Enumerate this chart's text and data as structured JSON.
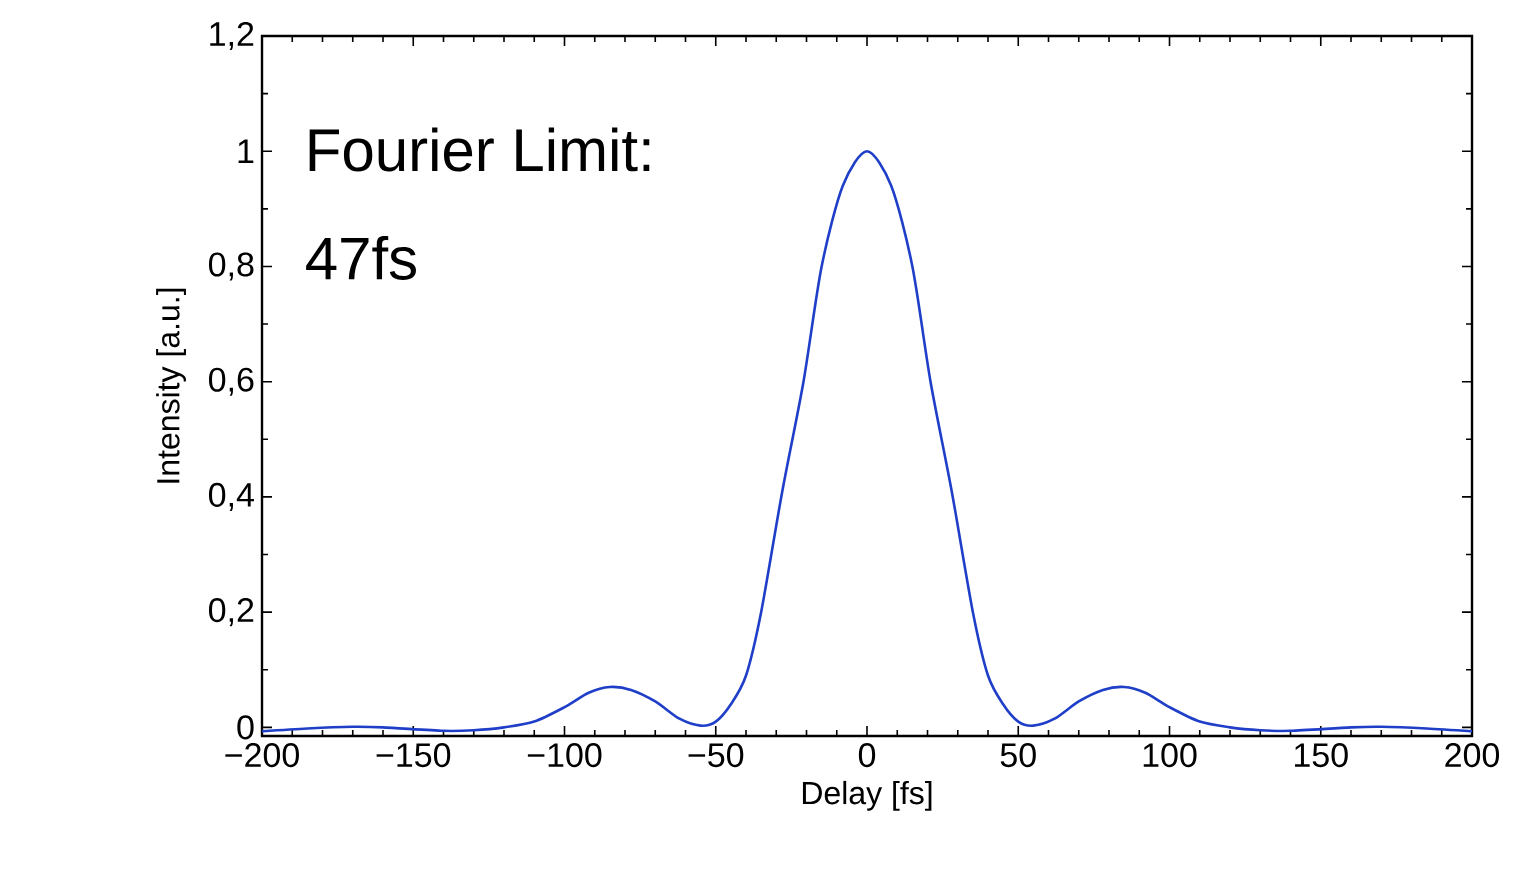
{
  "chart_data": {
    "type": "line",
    "xlabel": "Delay [fs]",
    "ylabel": "Intensity [a.u.]",
    "annotations": [
      "Fourier Limit:",
      "47fs"
    ],
    "xlim": [
      -200,
      200
    ],
    "ylim": [
      -0.015,
      1.2
    ],
    "xticks": [
      {
        "value": -200,
        "label": "−200"
      },
      {
        "value": -150,
        "label": "−150"
      },
      {
        "value": -100,
        "label": "−100"
      },
      {
        "value": -50,
        "label": "−50"
      },
      0,
      50,
      100,
      150,
      200
    ],
    "yticks": [
      0,
      {
        "value": 0.2,
        "label": "0,2"
      },
      {
        "value": 0.4,
        "label": "0,4"
      },
      {
        "value": 0.6,
        "label": "0,6"
      },
      {
        "value": 0.8,
        "label": "0,8"
      },
      1,
      {
        "value": 1.2,
        "label": "1,2"
      }
    ],
    "grid": false,
    "marker": "none",
    "line_style": "solid",
    "series": [
      {
        "color": "#1f3fc8",
        "x": [
          -200,
          -185,
          -170,
          -160,
          -140,
          -130,
          -120,
          -110,
          -100,
          -92,
          -85,
          -78,
          -70,
          -62,
          -55,
          -50,
          -45,
          -40,
          -35,
          -28,
          -21,
          -15,
          -8,
          0,
          8,
          15,
          21,
          28,
          35,
          40,
          45,
          50,
          55,
          62,
          70,
          78,
          85,
          92,
          100,
          110,
          120,
          130,
          140,
          160,
          170,
          185,
          200
        ],
        "values": [
          -0.007,
          -0.002,
          0.001,
          0.0,
          -0.006,
          -0.005,
          0.0,
          0.01,
          0.035,
          0.06,
          0.07,
          0.065,
          0.045,
          0.015,
          0.003,
          0.01,
          0.04,
          0.09,
          0.2,
          0.41,
          0.6,
          0.8,
          0.94,
          1.0,
          0.94,
          0.8,
          0.6,
          0.41,
          0.2,
          0.09,
          0.04,
          0.01,
          0.003,
          0.015,
          0.045,
          0.065,
          0.07,
          0.06,
          0.035,
          0.01,
          0.0,
          -0.005,
          -0.006,
          0.0,
          0.001,
          -0.002,
          -0.007
        ]
      }
    ]
  }
}
